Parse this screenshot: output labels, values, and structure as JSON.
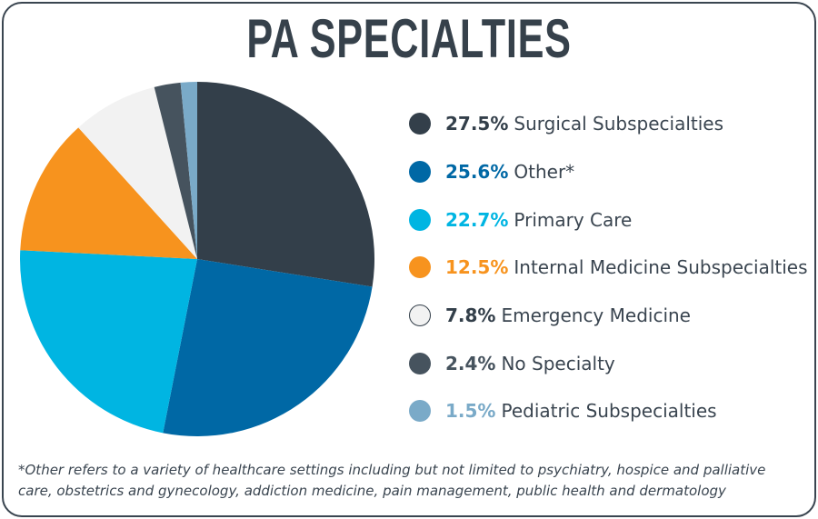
{
  "chart_data": {
    "type": "pie",
    "title": "PA SPECIALTIES",
    "slices": [
      {
        "label": "Surgical Subspecialties",
        "value": 27.5,
        "pct_label": "27.5%",
        "color": "#333f4a",
        "text_color": "#333f4a"
      },
      {
        "label": "Other*",
        "value": 25.6,
        "pct_label": "25.6%",
        "color": "#0068a5",
        "text_color": "#0068a5"
      },
      {
        "label": "Primary Care",
        "value": 22.7,
        "pct_label": "22.7%",
        "color": "#00b5e2",
        "text_color": "#00b5e2"
      },
      {
        "label": "Internal Medicine Subspecialties",
        "value": 12.5,
        "pct_label": "12.5%",
        "color": "#f7931e",
        "text_color": "#f7931e"
      },
      {
        "label": "Emergency Medicine",
        "value": 7.8,
        "pct_label": "7.8%",
        "color": "#f2f2f2",
        "text_color": "#333f4a"
      },
      {
        "label": "No Specialty",
        "value": 2.4,
        "pct_label": "2.4%",
        "color": "#46535e",
        "text_color": "#46535e"
      },
      {
        "label": "Pediatric Subspecialties",
        "value": 1.5,
        "pct_label": "1.5%",
        "color": "#7aaac8",
        "text_color": "#7aaac8"
      }
    ],
    "legend_position": "right"
  },
  "footnote": "*Other refers to a variety of healthcare settings including but not limited to psychiatry, hospice and palliative care, obstetrics and gynecology, addiction medicine, pain management, public health and dermatology"
}
